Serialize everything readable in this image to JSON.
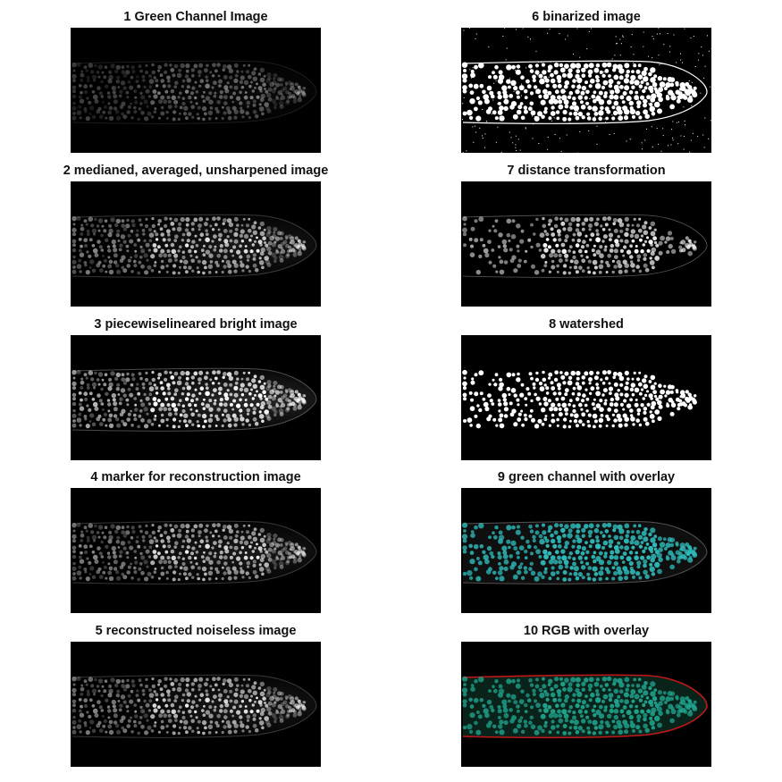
{
  "figure": {
    "panels": [
      {
        "id": 1,
        "title": "1 Green Channel Image",
        "style": "dim-gray"
      },
      {
        "id": 2,
        "title": "2 medianed, averaged, unsharpened image",
        "style": "gray"
      },
      {
        "id": 3,
        "title": "3 piecewiselineared bright image",
        "style": "bright-gray"
      },
      {
        "id": 4,
        "title": "4 marker for reconstruction image",
        "style": "gray"
      },
      {
        "id": 5,
        "title": "5 reconstructed noiseless image",
        "style": "gray"
      },
      {
        "id": 6,
        "title": "6 binarized image",
        "style": "binary"
      },
      {
        "id": 7,
        "title": "7 distance transformation",
        "style": "distance"
      },
      {
        "id": 8,
        "title": "8 watershed",
        "style": "watershed"
      },
      {
        "id": 9,
        "title": "9 green channel with overlay",
        "style": "cyan-overlay"
      },
      {
        "id": 10,
        "title": "10 RGB with overlay",
        "style": "rgb-overlay"
      }
    ],
    "colors": {
      "background": "#000000",
      "overlay_cyan": "#2fb9b9",
      "overlay_teal": "#1fa08a",
      "outline_red": "#c01818"
    }
  }
}
